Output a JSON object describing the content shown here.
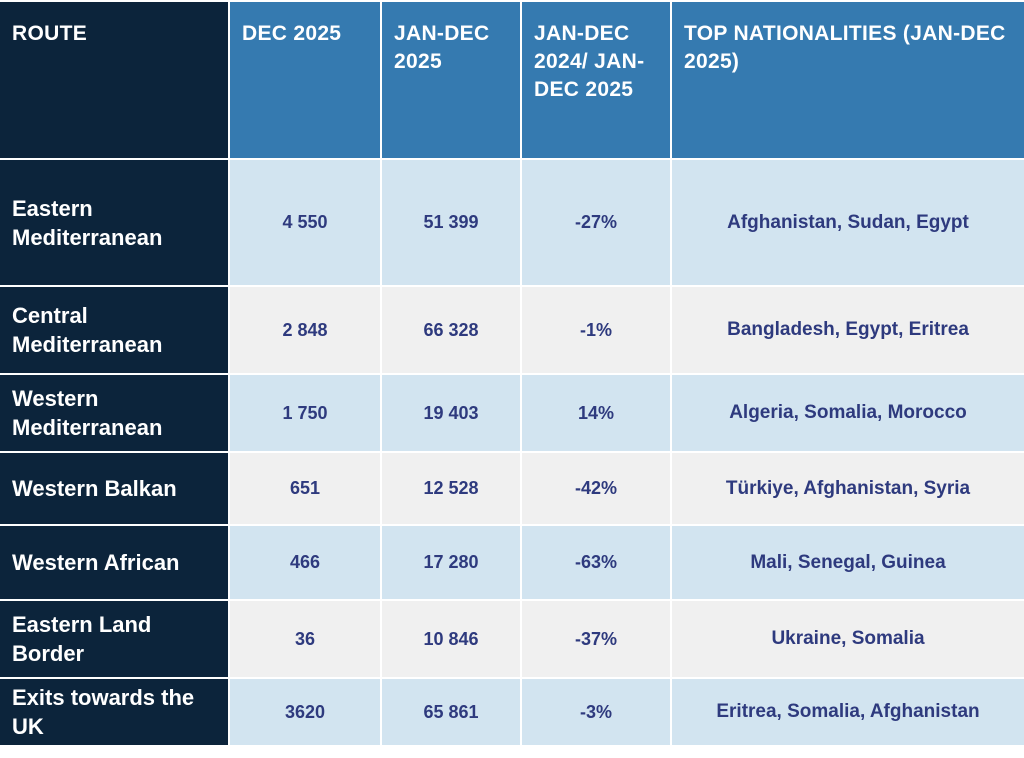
{
  "header": {
    "route": "ROUTE",
    "dec": "DEC 2025",
    "jandec": "JAN-DEC 2025",
    "change": "JAN-DEC 2024/ JAN-DEC 2025",
    "nationalities": "TOP NATIONALITIES (JAN-DEC 2025)"
  },
  "rows": [
    {
      "route": "Eastern Mediterranean",
      "dec": "4 550",
      "jandec": "51 399",
      "change": "-27%",
      "nationalities": "Afghanistan, Sudan, Egypt"
    },
    {
      "route": "Central Mediterranean",
      "dec": "2 848",
      "jandec": "66 328",
      "change": "-1%",
      "nationalities": "Bangladesh, Egypt, Eritrea"
    },
    {
      "route": "Western Mediterranean",
      "dec": "1 750",
      "jandec": "19 403",
      "change": "14%",
      "nationalities": "Algeria, Somalia, Morocco"
    },
    {
      "route": "Western Balkan",
      "dec": "651",
      "jandec": "12 528",
      "change": "-42%",
      "nationalities": "Türkiye, Afghanistan, Syria"
    },
    {
      "route": "Western African",
      "dec": "466",
      "jandec": "17 280",
      "change": "-63%",
      "nationalities": "Mali, Senegal, Guinea"
    },
    {
      "route": "Eastern Land Border",
      "dec": "36",
      "jandec": "10 846",
      "change": "-37%",
      "nationalities": "Ukraine, Somalia"
    },
    {
      "route": "Exits towards the UK",
      "dec": "3620",
      "jandec": "65 861",
      "change": "-3%",
      "nationalities": "Eritrea, Somalia, Afghanistan"
    }
  ],
  "colors": {
    "header_blue": "#357ab0",
    "route_navy": "#0c243b",
    "row_light_blue": "#d2e4f0",
    "row_light_gray": "#f0f0f0",
    "data_text": "#2e3a7e"
  }
}
